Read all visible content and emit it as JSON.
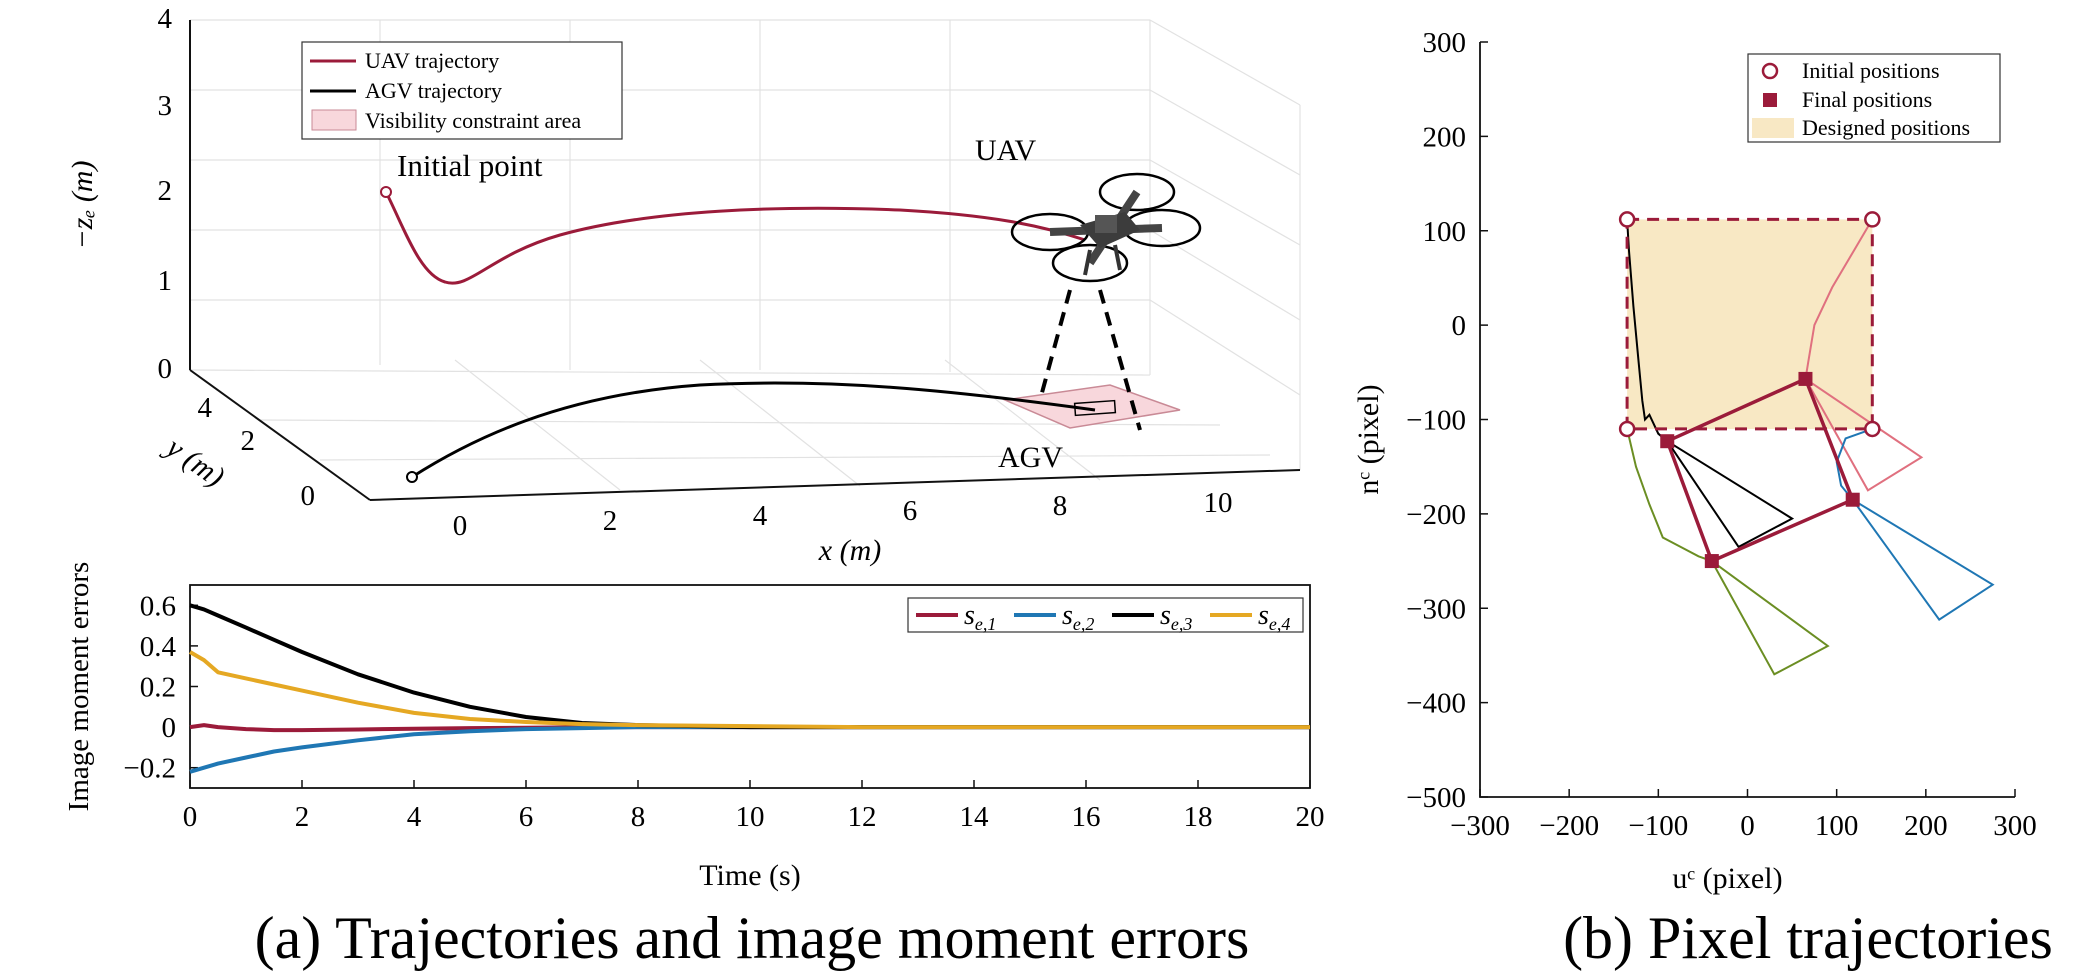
{
  "panel_a": {
    "caption": "(a) Trajectories and image moment errors",
    "traj3d": {
      "z_label": "−zₑ (m)",
      "y_label": "y (m)",
      "x_label": "x (m)",
      "z_ticks": [
        "0",
        "1",
        "2",
        "3",
        "4"
      ],
      "y_ticks": [
        "0",
        "2",
        "4"
      ],
      "x_ticks": [
        "0",
        "2",
        "4",
        "6",
        "8",
        "10"
      ],
      "legend": [
        "UAV trajectory",
        "AGV trajectory",
        "Visibility constraint area"
      ],
      "annotations": {
        "initial_point": "Initial point",
        "uav": "UAV",
        "agv": "AGV"
      },
      "colors": {
        "uav": "#9b1b3a",
        "agv": "#000000",
        "area": "#f8d7dc"
      }
    }
  },
  "panel_b": {
    "caption": "(b) Pixel trajectories"
  },
  "chart_data": [
    {
      "type": "line",
      "title": "",
      "xlabel": "Time (s)",
      "ylabel": "Image moment errors",
      "xlim": [
        0,
        20
      ],
      "ylim": [
        -0.3,
        0.7
      ],
      "x_ticks": [
        "0",
        "2",
        "4",
        "6",
        "8",
        "10",
        "12",
        "14",
        "16",
        "18",
        "20"
      ],
      "y_ticks": [
        "−0.2",
        "0",
        "0.2",
        "0.4",
        "0.6"
      ],
      "legend_position": "top-right",
      "legend_labels": [
        "s",
        "s",
        "s",
        "s"
      ],
      "legend_subs": [
        "e,1",
        "e,2",
        "e,3",
        "e,4"
      ],
      "x": [
        0,
        0.25,
        0.5,
        1,
        1.5,
        2,
        3,
        4,
        5,
        6,
        7,
        8,
        10,
        12,
        14,
        16,
        18,
        20
      ],
      "series": [
        {
          "name": "s_{e,1}",
          "color": "#9b1b3a",
          "values": [
            0,
            0.01,
            0,
            -0.01,
            -0.015,
            -0.015,
            -0.012,
            -0.008,
            -0.005,
            -0.003,
            -0.001,
            0,
            0,
            0,
            0,
            0,
            0,
            0
          ]
        },
        {
          "name": "s_{e,2}",
          "color": "#1f77b4",
          "values": [
            -0.22,
            -0.2,
            -0.18,
            -0.15,
            -0.12,
            -0.1,
            -0.065,
            -0.035,
            -0.02,
            -0.01,
            -0.005,
            0,
            0,
            0,
            0,
            0,
            0,
            0
          ]
        },
        {
          "name": "s_{e,3}",
          "color": "#000000",
          "values": [
            0.6,
            0.58,
            0.55,
            0.49,
            0.43,
            0.37,
            0.26,
            0.17,
            0.1,
            0.05,
            0.02,
            0.01,
            0,
            0,
            0,
            0,
            0,
            0
          ]
        },
        {
          "name": "s_{e,4}",
          "color": "#e5a823",
          "values": [
            0.37,
            0.33,
            0.27,
            0.24,
            0.21,
            0.18,
            0.12,
            0.07,
            0.04,
            0.025,
            0.015,
            0.01,
            0.005,
            0,
            0,
            0,
            0,
            0
          ]
        }
      ]
    },
    {
      "type": "line",
      "title": "",
      "xlabel": "uᶜ (pixel)",
      "ylabel": "nᶜ (pixel)",
      "xlim": [
        -300,
        300
      ],
      "ylim": [
        -500,
        300
      ],
      "x_ticks": [
        "−300",
        "−200",
        "−100",
        "0",
        "100",
        "200",
        "300"
      ],
      "y_ticks": [
        "−500",
        "−400",
        "−300",
        "−200",
        "−100",
        "0",
        "100",
        "200",
        "300"
      ],
      "legend_position": "top-right",
      "legend": [
        "Initial positions",
        "Final positions",
        "Designed positions"
      ],
      "colors": {
        "marker": "#9b1b3a",
        "designed": "#f8e8c4",
        "p1": "#000000",
        "p2": "#e0707f",
        "p3": "#6b8e23",
        "p4": "#1f77b4"
      },
      "designed_box": [
        [
          -135,
          112
        ],
        [
          140,
          112
        ],
        [
          140,
          -110
        ],
        [
          -135,
          -110
        ]
      ],
      "initial_positions": [
        [
          -135,
          112
        ],
        [
          140,
          112
        ],
        [
          140,
          -110
        ],
        [
          -135,
          -110
        ]
      ],
      "final_positions": [
        [
          -90,
          -123
        ],
        [
          65,
          -57
        ],
        [
          118,
          -185
        ],
        [
          -40,
          -250
        ]
      ],
      "pixel_paths": [
        {
          "name": "p1",
          "points": [
            [
              -135,
              112
            ],
            [
              -133,
              80
            ],
            [
              -128,
              20
            ],
            [
              -122,
              -40
            ],
            [
              -118,
              -80
            ],
            [
              -115,
              -100
            ],
            [
              -110,
              -95
            ],
            [
              -100,
              -115
            ],
            [
              -90,
              -123
            ]
          ]
        },
        {
          "name": "p2",
          "points": [
            [
              140,
              112
            ],
            [
              120,
              80
            ],
            [
              95,
              40
            ],
            [
              75,
              0
            ],
            [
              68,
              -40
            ],
            [
              65,
              -57
            ]
          ]
        },
        {
          "name": "p3",
          "points": [
            [
              -135,
              -110
            ],
            [
              -125,
              -150
            ],
            [
              -110,
              -190
            ],
            [
              -95,
              -225
            ],
            [
              -75,
              -235
            ],
            [
              -55,
              -245
            ],
            [
              -40,
              -250
            ]
          ]
        },
        {
          "name": "p4",
          "points": [
            [
              140,
              -110
            ],
            [
              110,
              -120
            ],
            [
              100,
              -145
            ],
            [
              105,
              -170
            ],
            [
              118,
              -185
            ]
          ]
        }
      ],
      "trapezoids": [
        {
          "name": "p1",
          "points": [
            [
              -90,
              -123
            ],
            [
              50,
              -205
            ],
            [
              -10,
              -235
            ]
          ]
        },
        {
          "name": "p2",
          "points": [
            [
              65,
              -57
            ],
            [
              195,
              -140
            ],
            [
              135,
              -175
            ]
          ]
        },
        {
          "name": "p3",
          "points": [
            [
              -40,
              -250
            ],
            [
              90,
              -340
            ],
            [
              30,
              -370
            ]
          ]
        },
        {
          "name": "p4",
          "points": [
            [
              118,
              -185
            ],
            [
              275,
              -275
            ],
            [
              215,
              -312
            ]
          ]
        }
      ]
    }
  ]
}
